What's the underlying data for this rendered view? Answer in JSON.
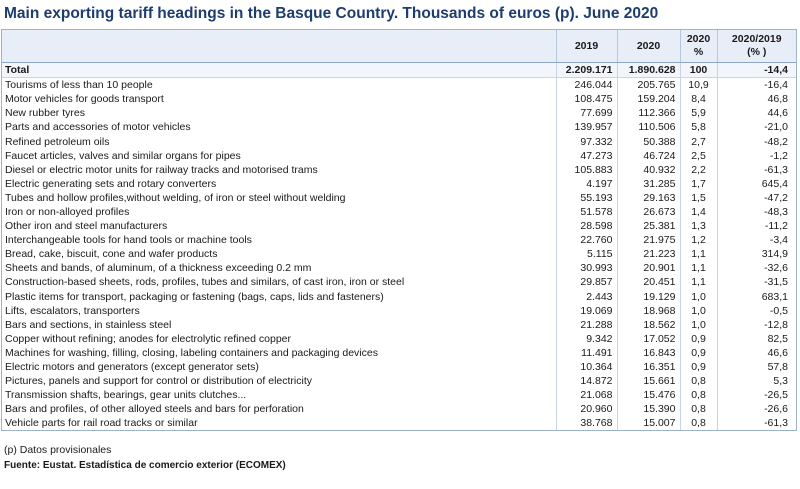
{
  "title": "Main exporting tariff headings in the Basque Country. Thousands of euros (p). June 2020",
  "columns": {
    "name": "",
    "y2019": "2019",
    "y2020": "2020",
    "pct_line1": "2020",
    "pct_line2": "%",
    "var_line1": "2020/2019",
    "var_line2": "(% )"
  },
  "total": {
    "name": "Total",
    "y2019": "2.209.171",
    "y2020": "1.890.628",
    "pct": "100",
    "var": "-14,4"
  },
  "rows": [
    {
      "name": "Tourisms of less than 10 people",
      "y2019": "246.044",
      "y2020": "205.765",
      "pct": "10,9",
      "var": "-16,4"
    },
    {
      "name": "Motor vehicles for goods transport",
      "y2019": "108.475",
      "y2020": "159.204",
      "pct": "8,4",
      "var": "46,8"
    },
    {
      "name": "New rubber tyres",
      "y2019": "77.699",
      "y2020": "112.366",
      "pct": "5,9",
      "var": "44,6"
    },
    {
      "name": "Parts and accessories of motor vehicles",
      "y2019": "139.957",
      "y2020": "110.506",
      "pct": "5,8",
      "var": "-21,0"
    },
    {
      "name": "Refined petroleum oils",
      "y2019": "97.332",
      "y2020": "50.388",
      "pct": "2,7",
      "var": "-48,2"
    },
    {
      "name": "Faucet articles, valves and similar organs for pipes",
      "y2019": "47.273",
      "y2020": "46.724",
      "pct": "2,5",
      "var": "-1,2"
    },
    {
      "name": "Diesel or electric motor units for railway tracks and motorised trams",
      "y2019": "105.883",
      "y2020": "40.932",
      "pct": "2,2",
      "var": "-61,3"
    },
    {
      "name": "Electric generating sets and rotary converters",
      "y2019": "4.197",
      "y2020": "31.285",
      "pct": "1,7",
      "var": "645,4"
    },
    {
      "name": "Tubes and hollow profiles,without welding, of iron or steel without welding",
      "y2019": "55.193",
      "y2020": "29.163",
      "pct": "1,5",
      "var": "-47,2"
    },
    {
      "name": "Iron or non-alloyed profiles",
      "y2019": "51.578",
      "y2020": "26.673",
      "pct": "1,4",
      "var": "-48,3"
    },
    {
      "name": "Other iron and steel manufacturers",
      "y2019": "28.598",
      "y2020": "25.381",
      "pct": "1,3",
      "var": "-11,2"
    },
    {
      "name": "Interchangeable tools for hand tools or machine tools",
      "y2019": "22.760",
      "y2020": "21.975",
      "pct": "1,2",
      "var": "-3,4"
    },
    {
      "name": "Bread, cake, biscuit, cone and wafer products",
      "y2019": "5.115",
      "y2020": "21.223",
      "pct": "1,1",
      "var": "314,9"
    },
    {
      "name": "Sheets and bands, of aluminum, of a thickness exceeding 0.2 mm",
      "y2019": "30.993",
      "y2020": "20.901",
      "pct": "1,1",
      "var": "-32,6"
    },
    {
      "name": "Construction-based sheets, rods, profiles, tubes and similars, of cast iron, iron or steel",
      "y2019": "29.857",
      "y2020": "20.451",
      "pct": "1,1",
      "var": "-31,5"
    },
    {
      "name": "Plastic items for transport, packaging or fastening (bags, caps, lids and fasteners)",
      "y2019": "2.443",
      "y2020": "19.129",
      "pct": "1,0",
      "var": "683,1"
    },
    {
      "name": "Lifts, escalators, transporters",
      "y2019": "19.069",
      "y2020": "18.968",
      "pct": "1,0",
      "var": "-0,5"
    },
    {
      "name": "Bars and sections, in stainless steel",
      "y2019": "21.288",
      "y2020": "18.562",
      "pct": "1,0",
      "var": "-12,8"
    },
    {
      "name": "Copper without refining; anodes for electrolytic refined copper",
      "y2019": "9.342",
      "y2020": "17.052",
      "pct": "0,9",
      "var": "82,5"
    },
    {
      "name": "Machines for washing, filling, closing, labeling containers and packaging devices",
      "y2019": "11.491",
      "y2020": "16.843",
      "pct": "0,9",
      "var": "46,6"
    },
    {
      "name": "Electric motors and generators (except generator sets)",
      "y2019": "10.364",
      "y2020": "16.351",
      "pct": "0,9",
      "var": "57,8"
    },
    {
      "name": "Pictures, panels and support for control or distribution of electricity",
      "y2019": "14.872",
      "y2020": "15.661",
      "pct": "0,8",
      "var": "5,3"
    },
    {
      "name": "Transmission shafts, bearings, gear units clutches...",
      "y2019": "21.068",
      "y2020": "15.476",
      "pct": "0,8",
      "var": "-26,5"
    },
    {
      "name": "Bars and profiles, of other alloyed steels and bars for perforation",
      "y2019": "20.960",
      "y2020": "15.390",
      "pct": "0,8",
      "var": "-26,6"
    },
    {
      "name": "Vehicle parts for rail road tracks or similar",
      "y2019": "38.768",
      "y2020": "15.007",
      "pct": "0,8",
      "var": "-61,3"
    }
  ],
  "note": "(p) Datos provisionales",
  "source": "Fuente: Eustat. Estadística de comercio exterior (ECOMEX)"
}
